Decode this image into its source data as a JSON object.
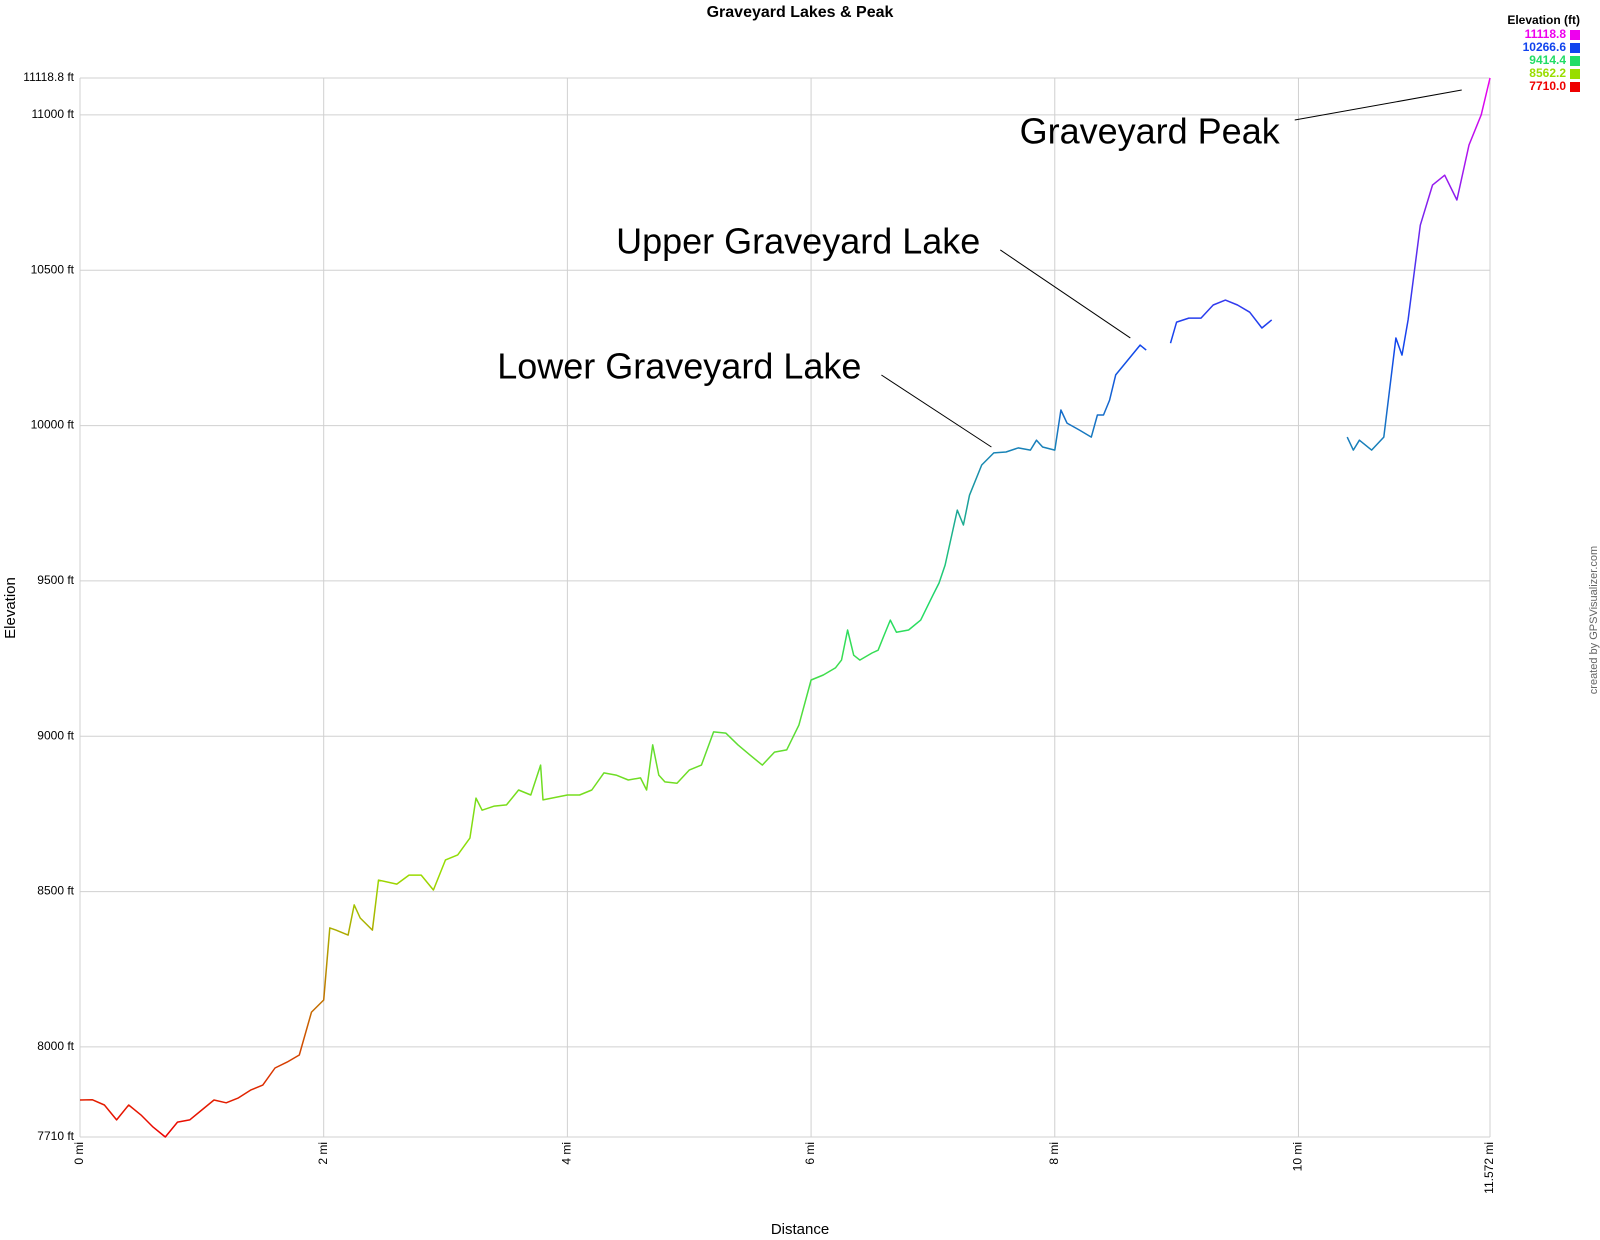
{
  "chart_data": {
    "type": "line",
    "title": "Graveyard Lakes & Peak",
    "xlabel": "Distance",
    "ylabel": "Elevation",
    "watermark": "created by GPSVisualizer.com",
    "xlim": [
      0,
      11.572
    ],
    "ylim": [
      7710,
      11118.8
    ],
    "xticks": [
      {
        "value": 0,
        "label": "0 mi"
      },
      {
        "value": 2,
        "label": "2 mi"
      },
      {
        "value": 4,
        "label": "4 mi"
      },
      {
        "value": 6,
        "label": "6 mi"
      },
      {
        "value": 8,
        "label": "8 mi"
      },
      {
        "value": 10,
        "label": "10 mi"
      },
      {
        "value": 11.572,
        "label": "11.572 mi"
      }
    ],
    "yticks": [
      {
        "value": 7710,
        "label": "7710 ft"
      },
      {
        "value": 8000,
        "label": "8000 ft"
      },
      {
        "value": 8500,
        "label": "8500 ft"
      },
      {
        "value": 9000,
        "label": "9000 ft"
      },
      {
        "value": 9500,
        "label": "9500 ft"
      },
      {
        "value": 10000,
        "label": "10000 ft"
      },
      {
        "value": 10500,
        "label": "10500 ft"
      },
      {
        "value": 11000,
        "label": "11000 ft"
      },
      {
        "value": 11118.8,
        "label": "11118.8 ft"
      }
    ],
    "grid": true,
    "color_scale": {
      "title": "Elevation (ft)",
      "stops": [
        {
          "value": 11118.8,
          "color": "#ee00ee"
        },
        {
          "value": 10266.6,
          "color": "#1144ee"
        },
        {
          "value": 9414.4,
          "color": "#22dd66"
        },
        {
          "value": 8562.2,
          "color": "#99dd00"
        },
        {
          "value": 7710,
          "label": "7710.0",
          "color": "#ee0000"
        }
      ]
    },
    "x": [
      0,
      0.1,
      0.2,
      0.3,
      0.4,
      0.5,
      0.6,
      0.7,
      0.8,
      0.9,
      1.0,
      1.1,
      1.2,
      1.3,
      1.4,
      1.5,
      1.6,
      1.7,
      1.8,
      1.9,
      2.0,
      2.05,
      2.1,
      2.2,
      2.25,
      2.3,
      2.4,
      2.45,
      2.6,
      2.7,
      2.8,
      2.9,
      3.0,
      3.1,
      3.2,
      3.25,
      3.3,
      3.4,
      3.5,
      3.6,
      3.7,
      3.78,
      3.8,
      4.0,
      4.1,
      4.2,
      4.3,
      4.4,
      4.5,
      4.6,
      4.65,
      4.7,
      4.75,
      4.8,
      4.9,
      5.0,
      5.1,
      5.2,
      5.3,
      5.4,
      5.5,
      5.6,
      5.7,
      5.8,
      5.9,
      6.0,
      6.1,
      6.2,
      6.25,
      6.3,
      6.35,
      6.4,
      6.5,
      6.55,
      6.6,
      6.65,
      6.7,
      6.8,
      6.9,
      7.0,
      7.05,
      7.1,
      7.2,
      7.25,
      7.3,
      7.4,
      7.5,
      7.6,
      7.7,
      7.8,
      7.85,
      7.9,
      8.0,
      8.05,
      8.1,
      8.2,
      8.3,
      8.35,
      8.4,
      8.45,
      8.5,
      8.6,
      8.7,
      8.75,
      8.85,
      8.95,
      9.0,
      9.1,
      9.2,
      9.3,
      9.4,
      9.5,
      9.6,
      9.7,
      9.78,
      10.1,
      10.4,
      10.45,
      10.5,
      10.6,
      10.7,
      10.8,
      10.85,
      10.9,
      11.0,
      11.1,
      11.2,
      11.3,
      11.4,
      11.5,
      11.572
    ],
    "values": [
      7829,
      7830,
      7813,
      7765,
      7813,
      7781,
      7742,
      7710,
      7758,
      7765,
      7797,
      7829,
      7820,
      7836,
      7861,
      7877,
      7932,
      7951,
      7974,
      8112,
      8151,
      8383,
      8376,
      8360,
      8457,
      8415,
      8376,
      8537,
      8524,
      8553,
      8553,
      8505,
      8602,
      8618,
      8672,
      8801,
      8762,
      8775,
      8779,
      8827,
      8811,
      8907,
      8795,
      8811,
      8811,
      8827,
      8882,
      8875,
      8859,
      8866,
      8827,
      8972,
      8875,
      8853,
      8849,
      8891,
      8907,
      9014,
      9010,
      8972,
      8939,
      8907,
      8949,
      8956,
      9036,
      9181,
      9197,
      9220,
      9245,
      9342,
      9261,
      9245,
      9268,
      9277,
      9326,
      9374,
      9335,
      9342,
      9374,
      9454,
      9493,
      9551,
      9728,
      9680,
      9776,
      9873,
      9912,
      9915,
      9928,
      9921,
      9953,
      9931,
      9921,
      10050,
      10008,
      9986,
      9963,
      10034,
      10034,
      10082,
      10163,
      10211,
      10259,
      10243,
      null,
      10265,
      10333,
      10346,
      10346,
      10388,
      10404,
      10388,
      10365,
      10314,
      10340,
      null,
      9963,
      9921,
      9953,
      9921,
      9963,
      10282,
      10227,
      10340,
      10645,
      10774,
      10806,
      10726,
      10903,
      11000,
      11118.8
    ],
    "annotations": [
      {
        "text": "Graveyard Peak",
        "x": 11.34,
        "y": 11080
      },
      {
        "text": "Upper Graveyard Lake",
        "x": 8.62,
        "y": 10282
      },
      {
        "text": "Lower Graveyard Lake",
        "x": 7.48,
        "y": 9931
      }
    ]
  }
}
